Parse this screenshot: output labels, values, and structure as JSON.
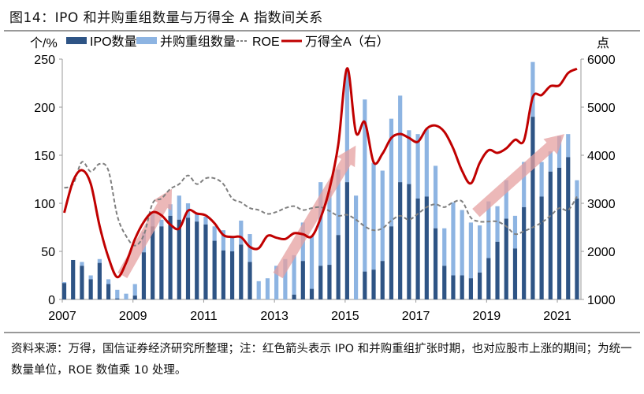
{
  "title": "图14：IPO 和并购重组数量与万得全 A 指数间关系",
  "footer": "资料来源：万得，国信证券经济研究所整理；注：红色箭头表示 IPO 和并购重组扩张时期，也对应股市上涨的期间；为统一数量单位，ROE 数值乘 10 处理。",
  "chart_data": {
    "type": "bar+line",
    "left_axis_unit": "个/%",
    "right_axis_unit": "点",
    "ylim_left": [
      0,
      250
    ],
    "yticks_left": [
      "0",
      "50",
      "100",
      "150",
      "200",
      "250"
    ],
    "ylim_right": [
      1000,
      6000
    ],
    "yticks_right": [
      "1000",
      "2000",
      "3000",
      "4000",
      "5000",
      "6000"
    ],
    "xticks": [
      "2007",
      "2009",
      "2011",
      "2013",
      "2015",
      "2017",
      "2019",
      "2021"
    ],
    "x_start_year": 2007,
    "periods": "quarterly 2007Q1–2021Q3",
    "grid": false,
    "legend_position": "top",
    "series": [
      {
        "name": "IPO数量",
        "type": "bar",
        "axis": "left",
        "color": "#2e5485",
        "values": [
          17,
          41,
          35,
          21,
          38,
          16,
          1,
          0,
          4,
          49,
          76,
          76,
          87,
          83,
          85,
          81,
          78,
          61,
          51,
          50,
          57,
          39,
          0,
          0,
          0,
          0,
          5,
          40,
          11,
          35,
          36,
          67,
          122,
          0,
          29,
          31,
          40,
          76,
          122,
          120,
          105,
          107,
          74,
          35,
          25,
          25,
          22,
          28,
          43,
          60,
          84,
          53,
          96,
          190,
          107,
          133,
          137,
          148,
          105
        ]
      },
      {
        "name": "并购重组数量",
        "type": "bar",
        "axis": "left",
        "stacked_on": "IPO数量",
        "color": "#8db4e2",
        "values": [
          1,
          0,
          4,
          4,
          4,
          5,
          9,
          6,
          12,
          21,
          13,
          7,
          12,
          25,
          15,
          8,
          8,
          15,
          21,
          16,
          25,
          29,
          19,
          22,
          35,
          42,
          41,
          40,
          55,
          87,
          77,
          68,
          118,
          108,
          179,
          111,
          94,
          112,
          90,
          56,
          67,
          70,
          65,
          39,
          76,
          68,
          58,
          49,
          59,
          37,
          40,
          34,
          47,
          57,
          36,
          21,
          33,
          24,
          19
        ]
      },
      {
        "name": "ROE",
        "type": "line",
        "style": "dashed",
        "axis": "left",
        "color": "#7f7f7f",
        "values": [
          116,
          120,
          143,
          133,
          141,
          134,
          87,
          66,
          56,
          67,
          100,
          105,
          115,
          120,
          129,
          120,
          126,
          126,
          120,
          105,
          101,
          95,
          93,
          89,
          91,
          95,
          97,
          93,
          95,
          96,
          92,
          87,
          88,
          83,
          76,
          72,
          74,
          82,
          87,
          83,
          89,
          96,
          99,
          96,
          101,
          102,
          85,
          81,
          81,
          81,
          76,
          68,
          71,
          75,
          80,
          87,
          95,
          93,
          107
        ]
      },
      {
        "name": "万得全A（右）",
        "type": "line",
        "axis": "right",
        "color": "#c00000",
        "values": [
          2803,
          3459,
          3689,
          3404,
          2530,
          1874,
          1464,
          1765,
          2257,
          2612,
          2814,
          2749,
          2557,
          2475,
          2847,
          2787,
          2749,
          2585,
          2339,
          2300,
          2295,
          2093,
          2066,
          2323,
          2284,
          2257,
          2377,
          2356,
          2311,
          2693,
          3295,
          4225,
          5808,
          4470,
          4689,
          3852,
          4033,
          4360,
          4443,
          4360,
          4279,
          4552,
          4618,
          4487,
          4142,
          3677,
          3415,
          3841,
          4104,
          4049,
          4142,
          4322,
          4306,
          5208,
          5251,
          5437,
          5454,
          5710,
          5798
        ]
      }
    ],
    "annotations": [
      {
        "type": "arrow",
        "color": "#e6a0a0",
        "from": [
          2008.7,
          25
        ],
        "to": [
          2010.1,
          115
        ]
      },
      {
        "type": "arrow",
        "color": "#e6a0a0",
        "from": [
          2013.1,
          25
        ],
        "to": [
          2015.3,
          160
        ]
      },
      {
        "type": "arrow",
        "color": "#e6a0a0",
        "from": [
          2018.7,
          90
        ],
        "to": [
          2021.2,
          172
        ]
      }
    ]
  }
}
